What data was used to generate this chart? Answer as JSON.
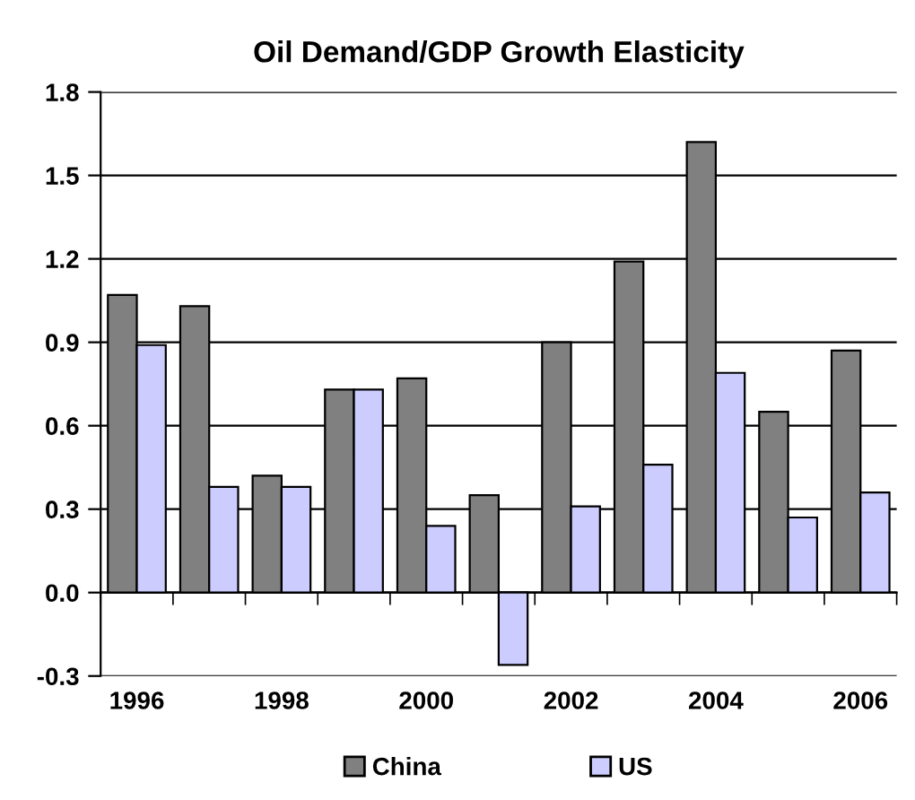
{
  "chart_data": {
    "type": "bar",
    "title": "Oil Demand/GDP Growth Elasticity",
    "categories": [
      "1996",
      null,
      "1998",
      null,
      "2000",
      null,
      "2002",
      null,
      "2004",
      null,
      "2006"
    ],
    "series": [
      {
        "name": "China",
        "color": "#808080",
        "values": [
          1.07,
          1.03,
          0.42,
          0.73,
          0.77,
          0.35,
          0.9,
          1.19,
          1.62,
          0.65,
          0.87
        ]
      },
      {
        "name": "US",
        "color": "#ccccff",
        "values": [
          0.89,
          0.38,
          0.38,
          0.73,
          0.24,
          -0.26,
          0.31,
          0.46,
          0.79,
          0.27,
          0.36
        ]
      }
    ],
    "ylim": [
      -0.3,
      1.8
    ],
    "yticks": [
      {
        "value": -0.3,
        "label": "-0.3"
      },
      {
        "value": 0,
        "label": "0.0"
      },
      {
        "value": 0.3,
        "label": "0.3"
      },
      {
        "value": 0.6,
        "label": "0.6"
      },
      {
        "value": 0.9,
        "label": "0.9"
      },
      {
        "value": 1.2,
        "label": "1.2"
      },
      {
        "value": 1.5,
        "label": "1.5"
      },
      {
        "value": 1.8,
        "label": "1.8"
      }
    ],
    "grid": "y",
    "legend": "bottom"
  }
}
